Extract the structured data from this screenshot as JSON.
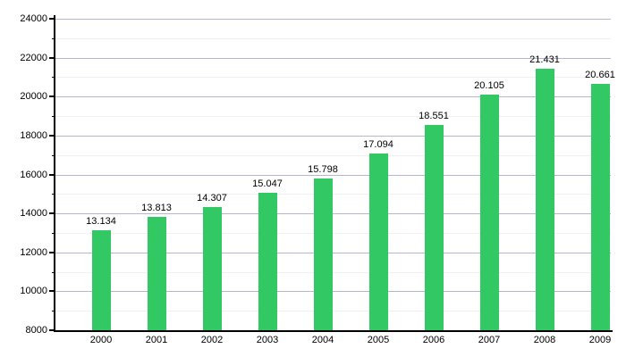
{
  "chart_data": {
    "type": "bar",
    "title": "",
    "xlabel": "",
    "ylabel": "",
    "categories": [
      "2000",
      "2001",
      "2002",
      "2003",
      "2004",
      "2005",
      "2006",
      "2007",
      "2008",
      "2009"
    ],
    "values": [
      13134,
      13813,
      14307,
      15047,
      15798,
      17094,
      18551,
      20105,
      21431,
      20661
    ],
    "value_labels": [
      "13.134",
      "13.813",
      "14.307",
      "15.047",
      "15.798",
      "17.094",
      "18.551",
      "20.105",
      "21.431",
      "20.661"
    ],
    "ylim": [
      8000,
      24000
    ],
    "y_major_step": 2000,
    "y_minor_step": 1000,
    "y_tick_labels": [
      "8000",
      "10000",
      "12000",
      "14000",
      "16000",
      "18000",
      "20000",
      "22000",
      "24000"
    ],
    "grid": "on",
    "legend": "none",
    "colors": {
      "bar": "#32c864",
      "axis": "#000000",
      "major_grid": "#b6b6cf",
      "minor_grid": "#f0f0f0",
      "text": "#000000",
      "background": "#ffffff"
    }
  }
}
